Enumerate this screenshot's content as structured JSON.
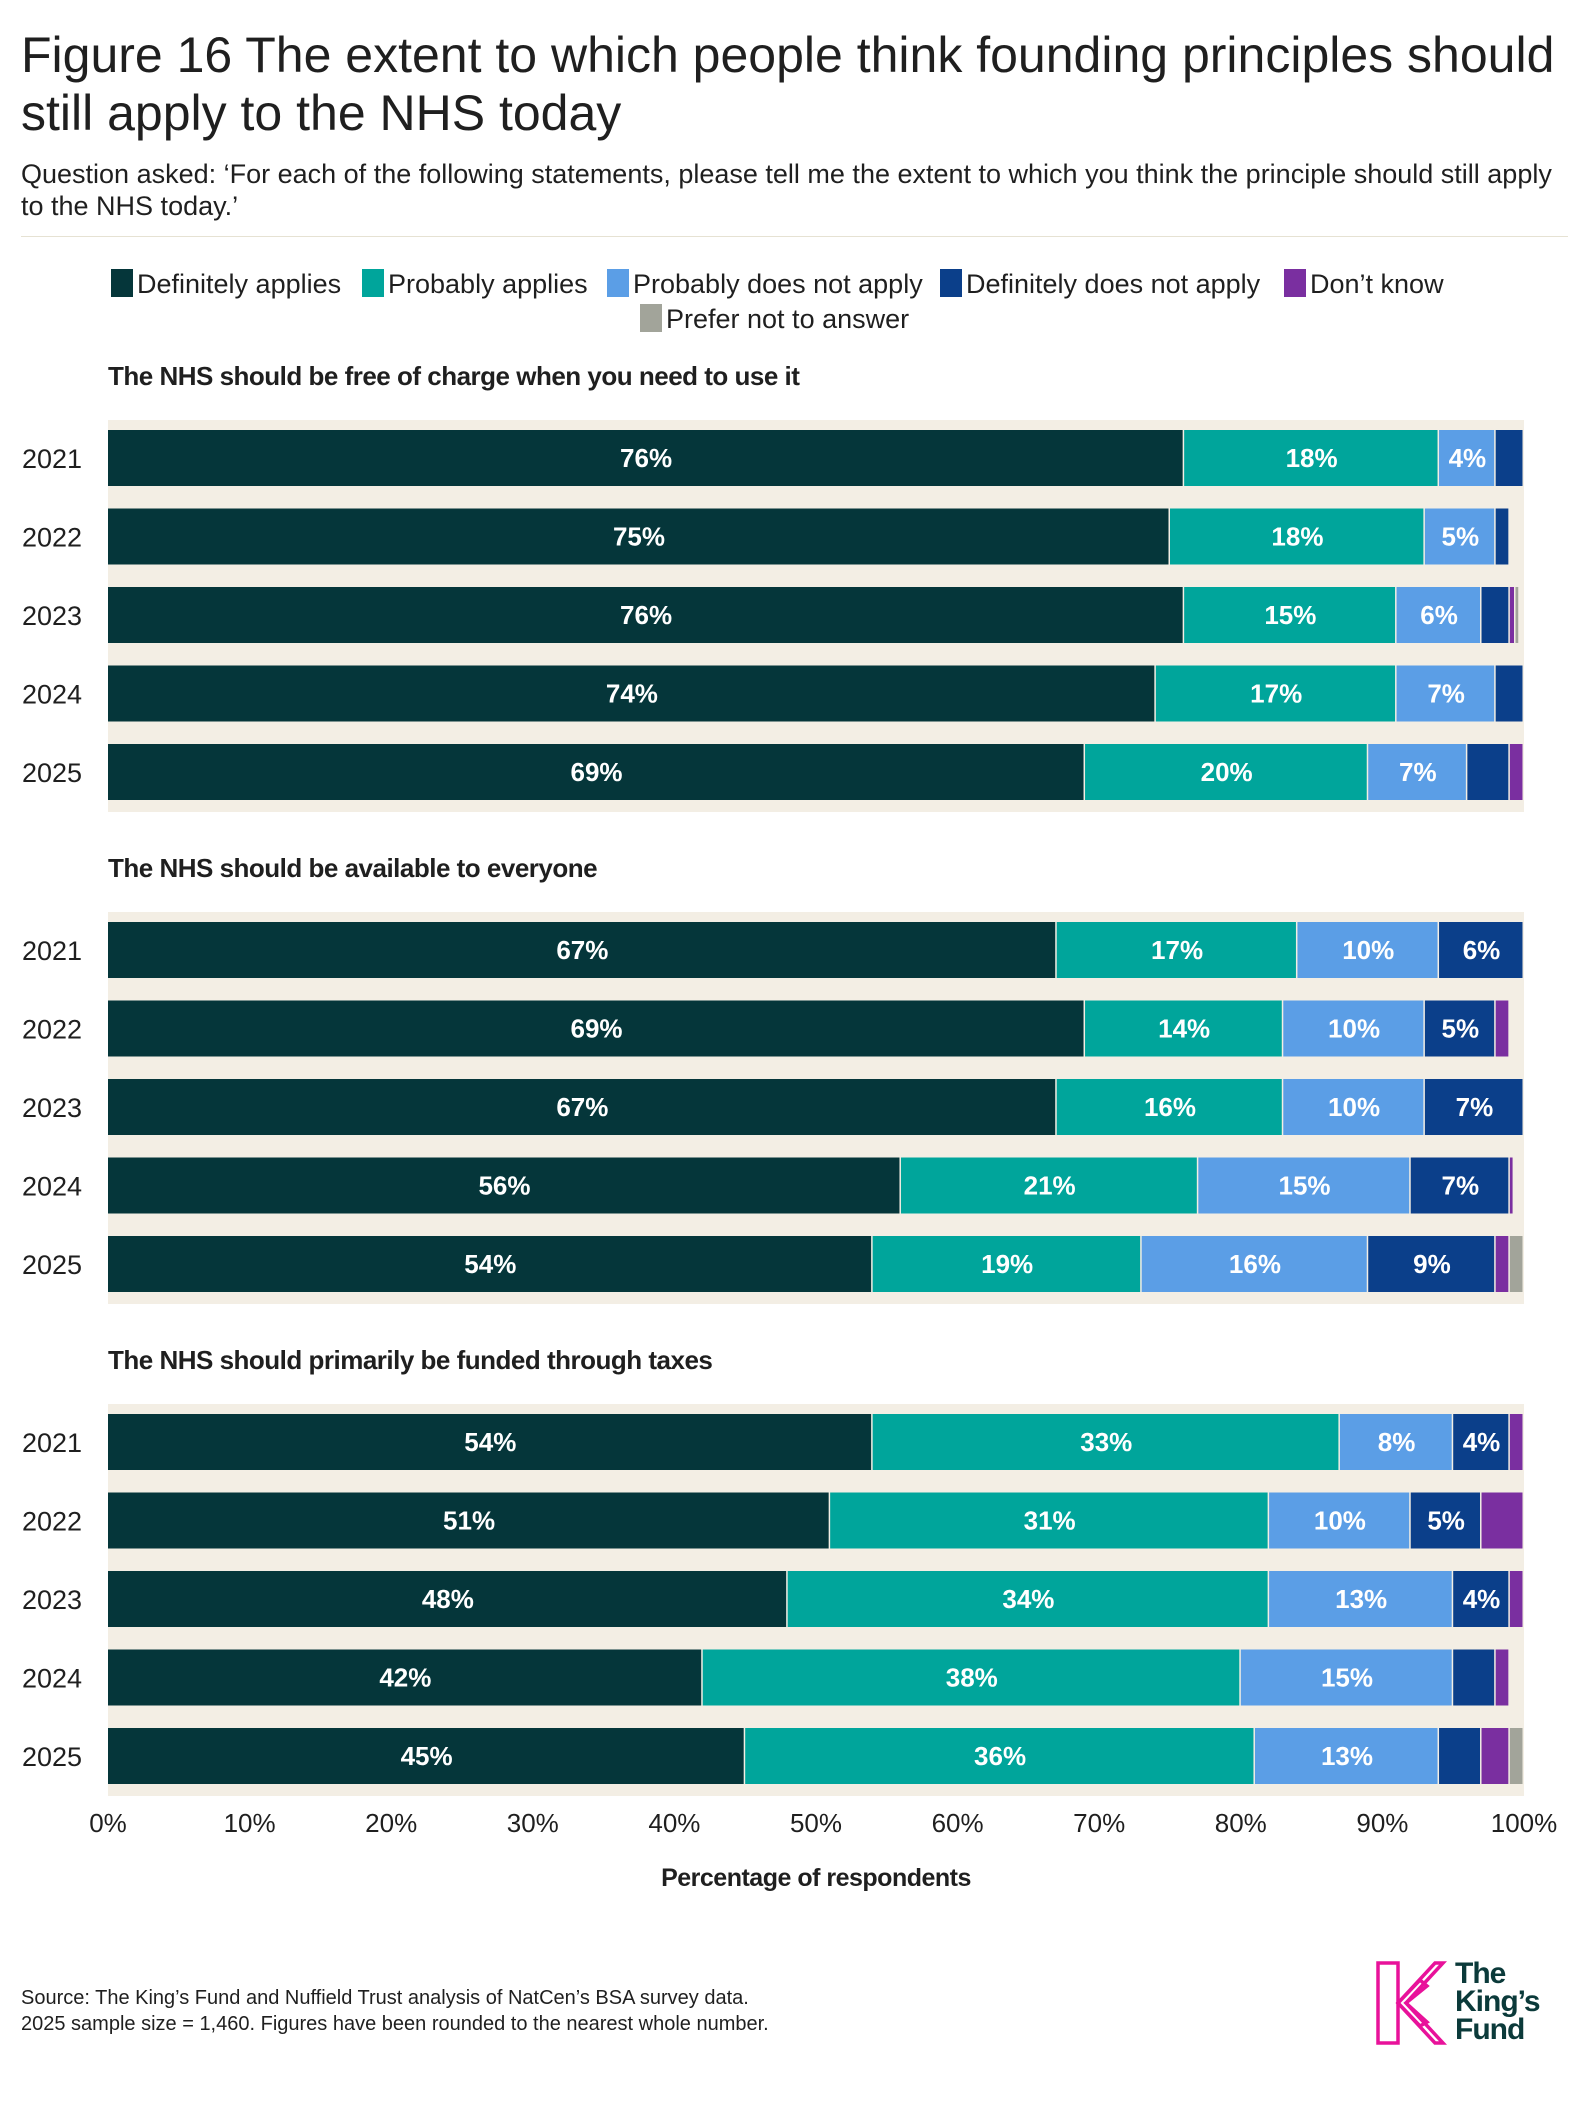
{
  "title": "Figure 16 The extent to which people think founding principles should still apply to the NHS today",
  "subtitle": "Question asked: ‘For each of the following statements, please tell me the extent to which you think the principle should still apply to the NHS today.’",
  "source_lines": [
    "Source: The King’s Fund and Nuffield Trust analysis of NatCen’s BSA survey data.",
    "2025 sample size = 1,460. Figures have been rounded to the nearest whole number."
  ],
  "logo": {
    "lines": [
      "The",
      "King’s",
      "Fund"
    ]
  },
  "colors": {
    "background_band": "#f3eee4",
    "definitely_applies": "#05363a",
    "probably_applies": "#00a59b",
    "probably_not": "#5b9ee6",
    "definitely_not": "#0b3f8a",
    "dont_know": "#7a2fa0",
    "prefer_not": "#a2a49a",
    "logo_pink": "#e8129a"
  },
  "chart_data": {
    "type": "bar",
    "orientation": "horizontal",
    "stacked": true,
    "xlabel": "Percentage of respondents",
    "xlim": [
      0,
      100
    ],
    "xticks": [
      "0%",
      "10%",
      "20%",
      "30%",
      "40%",
      "50%",
      "60%",
      "70%",
      "80%",
      "90%",
      "100%"
    ],
    "legend": {
      "placement": "top",
      "entries": [
        "Definitely applies",
        "Probably applies",
        "Probably does not apply",
        "Definitely does not apply",
        "Don’t know",
        "Prefer not to answer"
      ]
    },
    "panels": [
      {
        "title": "The NHS should be free of charge when you need to use it",
        "categories": [
          "2021",
          "2022",
          "2023",
          "2024",
          "2025"
        ],
        "series": [
          {
            "name": "Definitely applies",
            "values": [
              76,
              75,
              76,
              74,
              69
            ]
          },
          {
            "name": "Probably applies",
            "values": [
              18,
              18,
              15,
              17,
              20
            ]
          },
          {
            "name": "Probably does not apply",
            "values": [
              4,
              5,
              6,
              7,
              7
            ]
          },
          {
            "name": "Definitely does not apply",
            "values": [
              2,
              1,
              2,
              2,
              3
            ]
          },
          {
            "name": "Don’t know",
            "values": [
              0,
              0,
              0.4,
              0,
              1
            ]
          },
          {
            "name": "Prefer not to answer",
            "values": [
              0,
              0,
              0.3,
              0,
              0
            ]
          }
        ]
      },
      {
        "title": "The NHS should be available to everyone",
        "categories": [
          "2021",
          "2022",
          "2023",
          "2024",
          "2025"
        ],
        "series": [
          {
            "name": "Definitely applies",
            "values": [
              67,
              69,
              67,
              56,
              54
            ]
          },
          {
            "name": "Probably applies",
            "values": [
              17,
              14,
              16,
              21,
              19
            ]
          },
          {
            "name": "Probably does not apply",
            "values": [
              10,
              10,
              10,
              15,
              16
            ]
          },
          {
            "name": "Definitely does not apply",
            "values": [
              6,
              5,
              7,
              7,
              9
            ]
          },
          {
            "name": "Don’t know",
            "values": [
              0,
              1,
              0,
              0.3,
              1
            ]
          },
          {
            "name": "Prefer not to answer",
            "values": [
              0,
              0,
              0,
              0,
              1
            ]
          }
        ]
      },
      {
        "title": "The NHS should primarily be funded through taxes",
        "categories": [
          "2021",
          "2022",
          "2023",
          "2024",
          "2025"
        ],
        "series": [
          {
            "name": "Definitely applies",
            "values": [
              54,
              51,
              48,
              42,
              45
            ]
          },
          {
            "name": "Probably applies",
            "values": [
              33,
              31,
              34,
              38,
              36
            ]
          },
          {
            "name": "Probably does not apply",
            "values": [
              8,
              10,
              13,
              15,
              13
            ]
          },
          {
            "name": "Definitely does not apply",
            "values": [
              4,
              5,
              4,
              3,
              3
            ]
          },
          {
            "name": "Don’t know",
            "values": [
              1,
              3,
              1,
              1,
              2
            ]
          },
          {
            "name": "Prefer not to answer",
            "values": [
              0,
              0,
              0,
              0,
              1
            ]
          }
        ]
      }
    ]
  }
}
